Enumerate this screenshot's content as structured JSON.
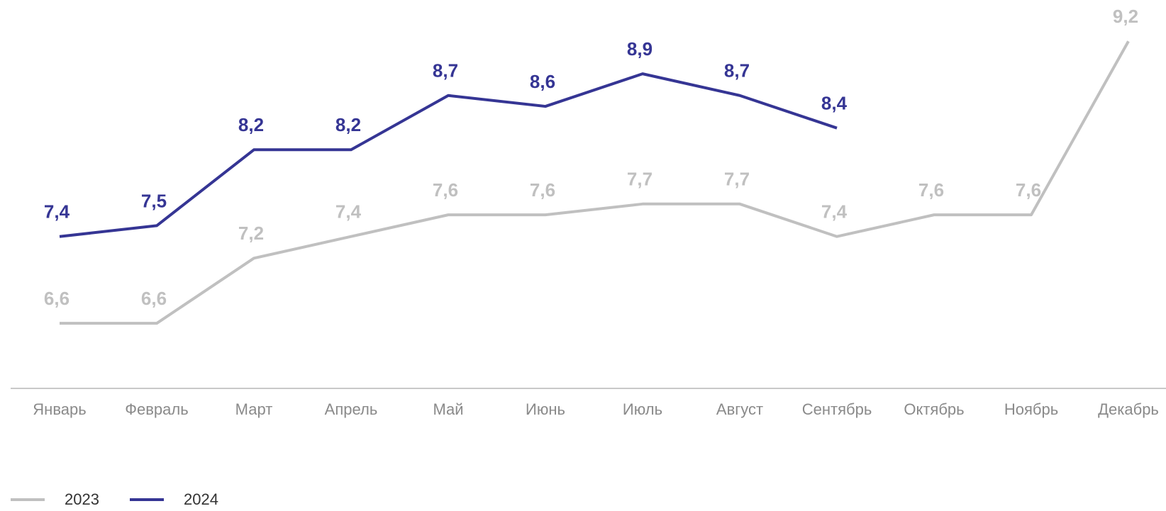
{
  "chart_data": {
    "type": "line",
    "categories": [
      "Январь",
      "Февраль",
      "Март",
      "Апрель",
      "Май",
      "Июнь",
      "Июль",
      "Август",
      "Сентябрь",
      "Октябрь",
      "Ноябрь",
      "Декабрь"
    ],
    "series": [
      {
        "name": "2023",
        "color": "#c0c0c0",
        "values": [
          6.6,
          6.6,
          7.2,
          7.4,
          7.6,
          7.6,
          7.7,
          7.7,
          7.4,
          7.6,
          7.6,
          9.2
        ],
        "value_labels": [
          "6,6",
          "6,6",
          "7,2",
          "7,4",
          "7,6",
          "7,6",
          "7,7",
          "7,7",
          "7,4",
          "7,6",
          "7,6",
          "9,2"
        ]
      },
      {
        "name": "2024",
        "color": "#353594",
        "values": [
          7.4,
          7.5,
          8.2,
          8.2,
          8.7,
          8.6,
          8.9,
          8.7,
          8.4,
          null,
          null,
          null
        ],
        "value_labels": [
          "7,4",
          "7,5",
          "8,2",
          "8,2",
          "8,7",
          "8,6",
          "8,9",
          "8,7",
          "8,4",
          null,
          null,
          null
        ]
      }
    ],
    "ylim": [
      6,
      9.6
    ],
    "legend": "bottom-left"
  }
}
